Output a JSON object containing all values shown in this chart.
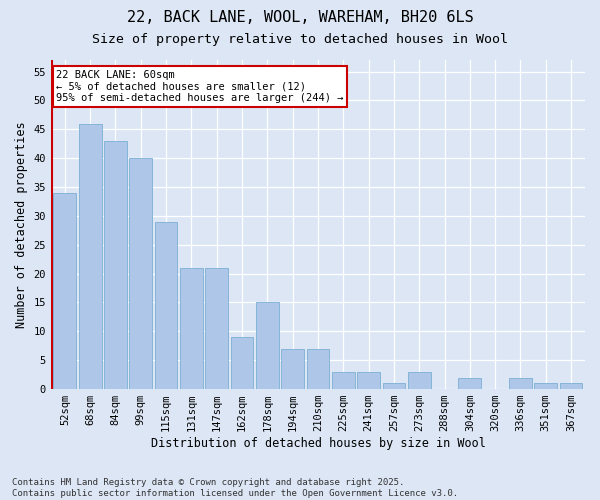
{
  "title1": "22, BACK LANE, WOOL, WAREHAM, BH20 6LS",
  "title2": "Size of property relative to detached houses in Wool",
  "xlabel": "Distribution of detached houses by size in Wool",
  "ylabel": "Number of detached properties",
  "categories": [
    "52sqm",
    "68sqm",
    "84sqm",
    "99sqm",
    "115sqm",
    "131sqm",
    "147sqm",
    "162sqm",
    "178sqm",
    "194sqm",
    "210sqm",
    "225sqm",
    "241sqm",
    "257sqm",
    "273sqm",
    "288sqm",
    "304sqm",
    "320sqm",
    "336sqm",
    "351sqm",
    "367sqm"
  ],
  "values": [
    34,
    46,
    43,
    40,
    29,
    21,
    21,
    9,
    15,
    7,
    7,
    3,
    3,
    1,
    3,
    0,
    2,
    0,
    2,
    1,
    1
  ],
  "bar_color": "#aec6e8",
  "bar_edge_color": "#7aafd4",
  "background_color": "#dce6f5",
  "grid_color": "#ffffff",
  "annotation_text": "22 BACK LANE: 60sqm\n← 5% of detached houses are smaller (12)\n95% of semi-detached houses are larger (244) →",
  "annotation_box_color": "#ffffff",
  "annotation_box_edge_color": "#cc0000",
  "vline_color": "#cc0000",
  "ylim": [
    0,
    57
  ],
  "yticks": [
    0,
    5,
    10,
    15,
    20,
    25,
    30,
    35,
    40,
    45,
    50,
    55
  ],
  "footnote": "Contains HM Land Registry data © Crown copyright and database right 2025.\nContains public sector information licensed under the Open Government Licence v3.0.",
  "title_fontsize": 11,
  "subtitle_fontsize": 9.5,
  "axis_label_fontsize": 8.5,
  "tick_fontsize": 7.5,
  "annotation_fontsize": 7.5,
  "footnote_fontsize": 6.5
}
